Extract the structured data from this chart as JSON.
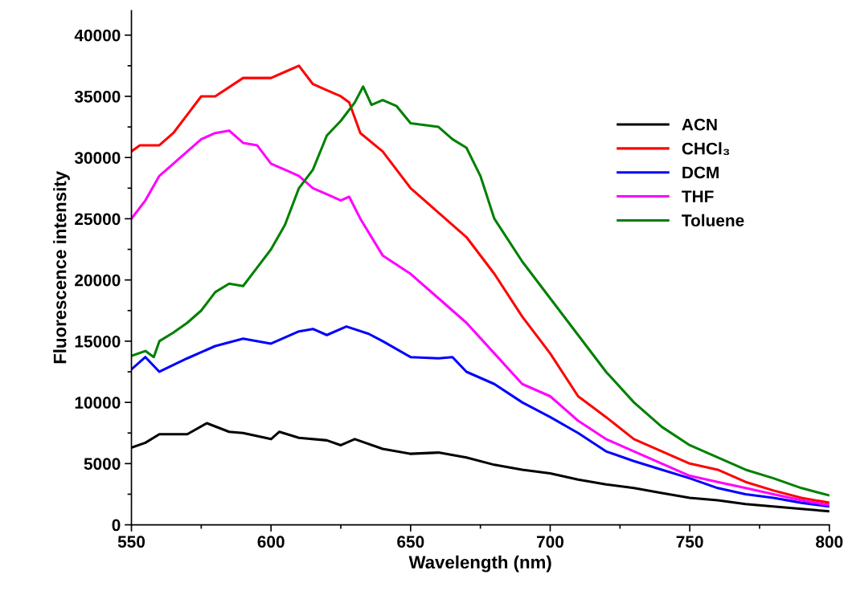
{
  "chart_data": {
    "type": "line",
    "xlabel": "Wavelength (nm)",
    "ylabel": "Fluorescence intensity",
    "xlim": [
      550,
      800
    ],
    "xticks": [
      550,
      600,
      650,
      700,
      750,
      800
    ],
    "ylim": [
      0,
      42000
    ],
    "yticks": [
      0,
      5000,
      10000,
      15000,
      20000,
      25000,
      30000,
      35000,
      40000
    ],
    "grid": false,
    "legend": "top right",
    "marker": "none",
    "line_style": "solid",
    "series": [
      {
        "name": "ACN",
        "color": "#000000",
        "x": [
          550,
          555,
          560,
          570,
          577,
          585,
          590,
          600,
          603,
          610,
          620,
          625,
          630,
          640,
          650,
          660,
          670,
          680,
          690,
          700,
          710,
          720,
          730,
          740,
          750,
          760,
          770,
          780,
          790,
          800
        ],
        "values": [
          6300,
          6700,
          7400,
          7400,
          8300,
          7600,
          7500,
          7000,
          7600,
          7100,
          6900,
          6500,
          7000,
          6200,
          5800,
          5900,
          5500,
          4900,
          4500,
          4200,
          3700,
          3300,
          3000,
          2600,
          2200,
          2000,
          1700,
          1500,
          1300,
          1100
        ]
      },
      {
        "name": "CHCl₃",
        "color": "#ff0000",
        "x": [
          550,
          553,
          560,
          565,
          570,
          575,
          580,
          590,
          600,
          605,
          610,
          615,
          620,
          625,
          628,
          632,
          640,
          650,
          660,
          670,
          680,
          690,
          700,
          710,
          720,
          730,
          740,
          750,
          760,
          770,
          780,
          790,
          800
        ],
        "values": [
          30500,
          31000,
          31000,
          32000,
          33500,
          35000,
          35000,
          36500,
          36500,
          37000,
          37500,
          36000,
          35500,
          35000,
          34500,
          32000,
          30500,
          27500,
          25500,
          23500,
          20500,
          17000,
          14000,
          10500,
          8800,
          7000,
          6000,
          5000,
          4500,
          3500,
          2800,
          2200,
          1800
        ]
      },
      {
        "name": "DCM",
        "color": "#0000ff",
        "x": [
          550,
          555,
          560,
          570,
          580,
          590,
          600,
          610,
          615,
          620,
          627,
          635,
          640,
          650,
          660,
          665,
          670,
          680,
          690,
          700,
          710,
          720,
          730,
          740,
          750,
          760,
          770,
          780,
          790,
          800
        ],
        "values": [
          12700,
          13700,
          12500,
          13600,
          14600,
          15200,
          14800,
          15800,
          16000,
          15500,
          16200,
          15600,
          15000,
          13700,
          13600,
          13700,
          12500,
          11500,
          10000,
          8800,
          7500,
          6000,
          5200,
          4500,
          3800,
          3000,
          2500,
          2200,
          1800,
          1500
        ]
      },
      {
        "name": "THF",
        "color": "#ff00ff",
        "x": [
          550,
          555,
          560,
          565,
          570,
          575,
          580,
          585,
          590,
          595,
          600,
          605,
          610,
          615,
          620,
          625,
          628,
          632,
          640,
          650,
          660,
          670,
          680,
          690,
          700,
          710,
          720,
          730,
          740,
          750,
          760,
          770,
          780,
          790,
          800
        ],
        "values": [
          25000,
          26500,
          28500,
          29500,
          30500,
          31500,
          32000,
          32200,
          31200,
          31000,
          29500,
          29000,
          28500,
          27500,
          27000,
          26500,
          26800,
          25000,
          22000,
          20500,
          18500,
          16500,
          14000,
          11500,
          10500,
          8500,
          7000,
          6000,
          5000,
          4000,
          3500,
          3000,
          2500,
          2000,
          1600
        ]
      },
      {
        "name": "Toluene",
        "color": "#008000",
        "x": [
          550,
          555,
          558,
          560,
          565,
          570,
          575,
          580,
          585,
          590,
          595,
          600,
          605,
          610,
          615,
          620,
          625,
          630,
          633,
          636,
          640,
          645,
          650,
          660,
          665,
          670,
          675,
          680,
          690,
          700,
          710,
          720,
          730,
          740,
          750,
          760,
          770,
          780,
          790,
          800
        ],
        "values": [
          13800,
          14200,
          13700,
          15000,
          15700,
          16500,
          17500,
          19000,
          19700,
          19500,
          21000,
          22500,
          24500,
          27500,
          29000,
          31800,
          33000,
          34500,
          35800,
          34300,
          34700,
          34200,
          32800,
          32500,
          31500,
          30800,
          28500,
          25000,
          21500,
          18500,
          15500,
          12500,
          10000,
          8000,
          6500,
          5500,
          4500,
          3800,
          3000,
          2400
        ]
      }
    ]
  }
}
